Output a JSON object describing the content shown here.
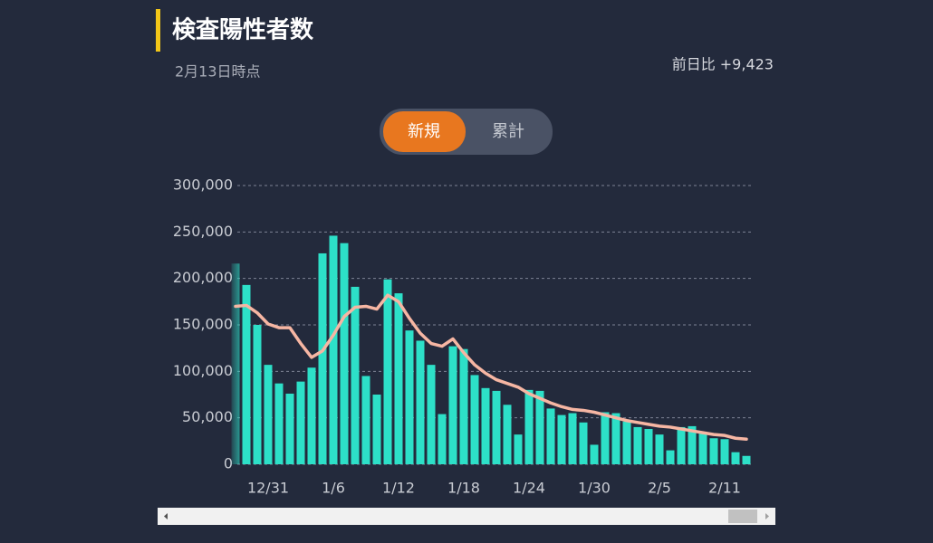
{
  "header": {
    "title": "検査陽性者数",
    "date": "2月13日時点",
    "diff": "前日比 +9,423"
  },
  "toggle": {
    "options": [
      "新規",
      "累計"
    ],
    "active": 0
  },
  "chart_data": {
    "type": "bar",
    "categories": [
      null,
      null,
      null,
      "12/31",
      null,
      null,
      null,
      null,
      null,
      "1/6",
      null,
      null,
      null,
      null,
      null,
      "1/12",
      null,
      null,
      null,
      null,
      null,
      "1/18",
      null,
      null,
      null,
      null,
      null,
      "1/24",
      null,
      null,
      null,
      null,
      null,
      "1/30",
      null,
      null,
      null,
      null,
      null,
      "2/5",
      null,
      null,
      null,
      null,
      null,
      "2/11",
      null,
      null
    ],
    "series": [
      {
        "type": "bar",
        "color": "#2de0c8",
        "values": [
          216000,
          193000,
          150000,
          107000,
          87000,
          76000,
          89000,
          104000,
          227000,
          246000,
          238000,
          191000,
          95000,
          75000,
          199000,
          184000,
          144000,
          133000,
          107000,
          54000,
          127000,
          124000,
          96000,
          82000,
          79000,
          64000,
          32000,
          80000,
          79000,
          60000,
          53000,
          55000,
          45000,
          21000,
          56000,
          55000,
          46000,
          40000,
          38000,
          32000,
          15000,
          40000,
          41000,
          33000,
          28000,
          27000,
          13000,
          9000
        ]
      },
      {
        "type": "line",
        "color": "#f6b6a3",
        "values": [
          170000,
          171000,
          163000,
          151000,
          147000,
          147000,
          130000,
          115000,
          122000,
          139000,
          159000,
          169000,
          170000,
          167000,
          182000,
          175000,
          157000,
          141000,
          130000,
          127000,
          135000,
          120000,
          107000,
          98000,
          91000,
          87000,
          83000,
          76000,
          71000,
          66000,
          62000,
          59000,
          58000,
          56000,
          53000,
          50000,
          47000,
          45000,
          43000,
          41000,
          40000,
          38000,
          36000,
          34000,
          32000,
          31000,
          28000,
          27000
        ]
      }
    ],
    "ylim": [
      0,
      300000
    ],
    "yticks": [
      0,
      {
        "value": 50000,
        "label": "50,000"
      },
      {
        "value": 100000,
        "label": "100,000"
      },
      {
        "value": 150000,
        "label": "150,000"
      },
      {
        "value": 200000,
        "label": "200,000"
      },
      {
        "value": 250000,
        "label": "250,000"
      },
      {
        "value": 300000,
        "label": "300,000"
      }
    ],
    "grid": true
  }
}
